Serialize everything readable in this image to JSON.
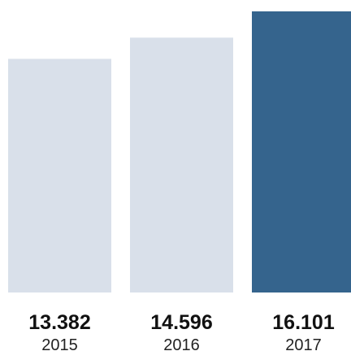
{
  "chart_data": {
    "type": "bar",
    "categories": [
      "2015",
      "2016",
      "2017"
    ],
    "values": [
      13382,
      14596,
      16101
    ],
    "value_labels": [
      "13.382",
      "14.596",
      "16.101"
    ],
    "title": "",
    "xlabel": "",
    "ylabel": "",
    "ylim": [
      0,
      16101
    ],
    "grid": false,
    "legend": "none",
    "colors": [
      "#d9e0ea",
      "#d9e0ea",
      "#35648d"
    ],
    "highlight_index": 2
  }
}
